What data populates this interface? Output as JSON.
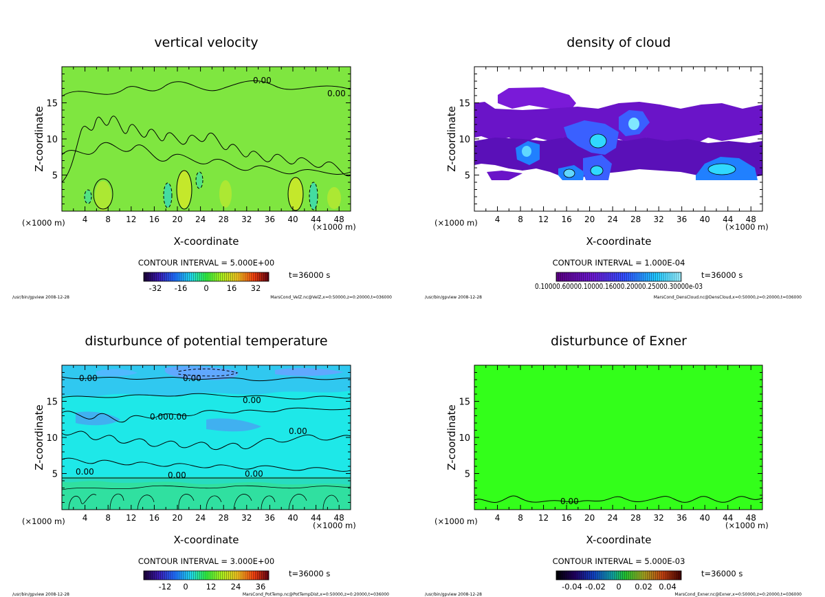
{
  "chart_data": [
    {
      "type": "heatmap",
      "title": "vertical velocity",
      "xlabel": "X-coordinate",
      "ylabel": "Z-coordinate",
      "x_unit": "(×1000 m)",
      "y_unit": "(×1000 m)",
      "xlim": [
        0,
        50
      ],
      "ylim": [
        0,
        20
      ],
      "xticks": [
        4,
        8,
        12,
        16,
        20,
        24,
        28,
        32,
        36,
        40,
        44,
        48
      ],
      "yticks": [
        5,
        10,
        15
      ],
      "background_color": "#7fe640",
      "contour_labels": [
        "0.00",
        "0.00"
      ],
      "contour_interval": "CONTOUR INTERVAL = 5.000E+00",
      "time_label": "t=36000 s",
      "colorbar": {
        "palette": "rainbow",
        "ticks": [
          "-32",
          "-16",
          "0",
          "16",
          "32"
        ]
      },
      "footer_left": "/usr/bin/gpview  2008-12-28",
      "footer_right": "MarsCond_VelZ.nc@VelZ,x=0:50000,z=0:20000,t=036000"
    },
    {
      "type": "heatmap",
      "title": "density of cloud",
      "xlabel": "X-coordinate",
      "ylabel": "Z-coordinate",
      "x_unit": "(×1000 m)",
      "y_unit": "(×1000 m)",
      "xlim": [
        0,
        50
      ],
      "ylim": [
        0,
        20
      ],
      "xticks": [
        4,
        8,
        12,
        16,
        20,
        24,
        28,
        32,
        36,
        40,
        44,
        48
      ],
      "yticks": [
        5,
        10,
        15
      ],
      "background_color": "#ffffff",
      "contour_interval": "CONTOUR INTERVAL = 1.000E-04",
      "time_label": "t=36000 s",
      "colorbar": {
        "palette": "purple-cyan",
        "label": "0.10000.60000.10000.16000.20000.25000.30000e-03"
      },
      "footer_left": "/usr/bin/gpview  2008-12-28",
      "footer_right": "MarsCond_DensCloud.nc@DensCloud,x=0:50000,z=0:20000,t=036000"
    },
    {
      "type": "heatmap",
      "title": "disturbunce of potential temperature",
      "xlabel": "X-coordinate",
      "ylabel": "Z-coordinate",
      "x_unit": "(×1000 m)",
      "y_unit": "(×1000 m)",
      "xlim": [
        0,
        50
      ],
      "ylim": [
        0,
        20
      ],
      "xticks": [
        4,
        8,
        12,
        16,
        20,
        24,
        28,
        32,
        36,
        40,
        44,
        48
      ],
      "yticks": [
        5,
        10,
        15
      ],
      "background_color": "#1ee8e8",
      "contour_labels": [
        "0.00",
        "0.00",
        "0.00",
        "0.00",
        "0.00",
        "0.00",
        "0.00",
        "0.00",
        "0.00"
      ],
      "contour_interval": "CONTOUR INTERVAL = 3.000E+00",
      "time_label": "t=36000 s",
      "colorbar": {
        "palette": "rainbow",
        "ticks": [
          "-12",
          "0",
          "12",
          "24",
          "36"
        ]
      },
      "footer_left": "/usr/bin/gpview  2008-12-28",
      "footer_right": "MarsCond_PotTemp.nc@PotTempDist,x=0:50000,z=0:20000,t=036000"
    },
    {
      "type": "heatmap",
      "title": "disturbunce of Exner",
      "xlabel": "X-coordinate",
      "ylabel": "Z-coordinate",
      "x_unit": "(×1000 m)",
      "y_unit": "(×1000 m)",
      "xlim": [
        0,
        50
      ],
      "ylim": [
        0,
        20
      ],
      "xticks": [
        4,
        8,
        12,
        16,
        20,
        24,
        28,
        32,
        36,
        40,
        44,
        48
      ],
      "yticks": [
        5,
        10,
        15
      ],
      "background_color": "#33ff1a",
      "contour_labels": [
        "0.00"
      ],
      "contour_interval": "CONTOUR INTERVAL = 5.000E-03",
      "time_label": "t=36000 s",
      "colorbar": {
        "palette": "dark-rainbow",
        "ticks": [
          "-0.04",
          "-0.02",
          "0",
          "0.02",
          "0.04"
        ]
      },
      "footer_left": "/usr/bin/gpview  2008-12-28",
      "footer_right": "MarsCond_Exner.nc@Exner,x=0:50000,z=0:20000,t=036000"
    }
  ]
}
